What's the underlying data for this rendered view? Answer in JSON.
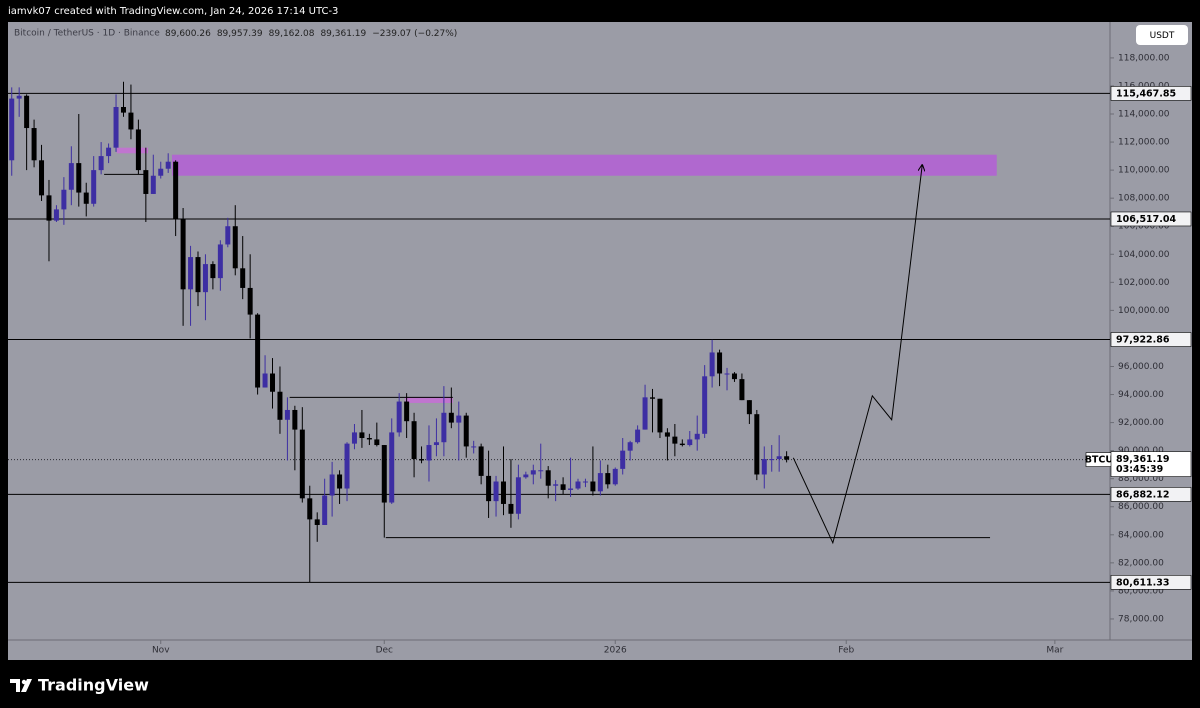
{
  "chart_data": {
    "type": "candlestick",
    "credit": "iamvk07 created with TradingView.com, Jan 24, 2026 17:14 UTC-3",
    "instrument": "Bitcoin / TetherUS · 1D · Binance",
    "header_values": [
      "89,600.26",
      "89,957.39",
      "89,162.08",
      "89,361.19"
    ],
    "change_label": "−239.07 (−0.27%)",
    "currency": "USDT",
    "symbol": "BTCUSDT",
    "last_price": {
      "value": 89361.19,
      "label": "89,361.19"
    },
    "countdown": "03:45:39",
    "brand": "TradingView",
    "up_color": "#3d2ea3",
    "down_color": "#000000",
    "background": "#9b9ca6",
    "open": [
      110700,
      115100,
      115300,
      113000,
      110700,
      108200,
      106400,
      107200,
      108600,
      110500,
      108400,
      107600,
      110000,
      111000,
      111600,
      114500,
      114100,
      112900,
      110000,
      108300,
      109600,
      110100,
      110600,
      106500,
      101500,
      103800,
      101300,
      103300,
      102300,
      104700,
      106000,
      103000,
      101600,
      99700,
      94500,
      95500,
      94200,
      92200,
      92900,
      91500,
      86600,
      85100,
      84700,
      86800,
      88300,
      87300,
      90500,
      91300,
      90900,
      90800,
      90400,
      86300,
      91300,
      93500,
      92100,
      89400,
      89300,
      90400,
      90600,
      92700,
      92000,
      92500,
      90300,
      90300,
      88200,
      86400,
      87800,
      86200,
      85500,
      88100,
      88300,
      88600,
      88600,
      87500,
      87600,
      87200,
      87300,
      87800,
      87800,
      87100,
      88400,
      87600,
      88700,
      90000,
      90600,
      91500,
      93800,
      93700,
      91300,
      91000,
      90500,
      90400,
      90800,
      91200,
      95300,
      97000,
      95500,
      95500,
      95100,
      93600,
      92600,
      88300,
      89400,
      89400,
      89600.26
    ],
    "high": [
      115900,
      115900,
      115400,
      113600,
      111800,
      109300,
      107500,
      109500,
      111700,
      114000,
      109100,
      111000,
      112000,
      111900,
      115400,
      116300,
      116100,
      113600,
      111600,
      111100,
      110600,
      111200,
      110700,
      107300,
      104600,
      104200,
      104000,
      103500,
      105000,
      106600,
      107500,
      105300,
      104000,
      99800,
      96800,
      96600,
      96000,
      93800,
      93200,
      93100,
      87500,
      85600,
      88000,
      89200,
      88600,
      90600,
      91900,
      92900,
      91200,
      92000,
      90400,
      92300,
      94100,
      94100,
      92700,
      90300,
      91800,
      92300,
      94600,
      94500,
      93500,
      92700,
      90700,
      90500,
      90000,
      88200,
      90300,
      89400,
      89000,
      88500,
      89000,
      90500,
      88900,
      87900,
      88100,
      89500,
      88000,
      88000,
      90300,
      89300,
      89000,
      88800,
      90900,
      90700,
      91800,
      94700,
      94400,
      93700,
      91600,
      91900,
      90800,
      91400,
      92500,
      96100,
      97900,
      97200,
      95900,
      95600,
      95500,
      93600,
      92900,
      90300,
      90400,
      91100,
      89957.39
    ],
    "low": [
      109600,
      113800,
      110000,
      110200,
      107800,
      103500,
      106300,
      106100,
      107500,
      107400,
      106700,
      107400,
      109700,
      110500,
      111300,
      113800,
      112200,
      109700,
      106300,
      108300,
      109400,
      109800,
      105300,
      98900,
      98900,
      100300,
      99300,
      101500,
      101400,
      104500,
      102500,
      100800,
      98000,
      94000,
      94500,
      93000,
      91200,
      89300,
      88600,
      86300,
      80600,
      83500,
      84700,
      85300,
      86200,
      86400,
      90100,
      90200,
      90400,
      90300,
      83800,
      86200,
      91000,
      90900,
      88100,
      89100,
      87800,
      89600,
      89600,
      91600,
      89300,
      89500,
      89800,
      87600,
      85200,
      85300,
      85400,
      84500,
      85100,
      88000,
      87600,
      88000,
      86600,
      86400,
      86900,
      86700,
      87200,
      87400,
      86800,
      86800,
      87300,
      87500,
      88300,
      89300,
      90500,
      91500,
      91300,
      90900,
      89300,
      89600,
      90300,
      90300,
      90000,
      90900,
      94500,
      94600,
      94300,
      94900,
      93600,
      91900,
      87900,
      87300,
      88500,
      88500,
      89162.08
    ],
    "close": [
      115100,
      115300,
      113000,
      110700,
      108200,
      106400,
      107200,
      108600,
      110500,
      108400,
      107600,
      110000,
      111000,
      111600,
      114500,
      114100,
      112900,
      110000,
      108300,
      109600,
      110100,
      110600,
      106500,
      101500,
      103800,
      101300,
      103300,
      102300,
      104700,
      106000,
      103000,
      101600,
      99700,
      94500,
      95500,
      94200,
      92200,
      92900,
      91500,
      86600,
      85100,
      84700,
      86800,
      88300,
      87300,
      90500,
      91300,
      90900,
      90800,
      90400,
      86300,
      91300,
      93500,
      92100,
      89400,
      89300,
      90400,
      90600,
      92700,
      92000,
      92500,
      90300,
      90300,
      88200,
      86400,
      87800,
      86200,
      85500,
      88100,
      88300,
      88600,
      88600,
      87500,
      87600,
      87200,
      87300,
      87800,
      87800,
      87100,
      88400,
      87600,
      88700,
      90000,
      90600,
      91500,
      93800,
      93700,
      91300,
      91000,
      90500,
      90400,
      90800,
      91200,
      95300,
      97000,
      95500,
      95500,
      95100,
      93600,
      92600,
      88300,
      89400,
      89400,
      89600.26,
      89361.19
    ],
    "xlim": [
      -0.5,
      147.4
    ],
    "xticks": [
      {
        "value": 20,
        "label": "Nov"
      },
      {
        "value": 50,
        "label": "Dec"
      },
      {
        "value": 81,
        "label": "2026"
      },
      {
        "value": 112,
        "label": "Feb"
      },
      {
        "value": 140,
        "label": "Mar"
      }
    ],
    "ylim": [
      76500,
      120560
    ],
    "yticks": [
      {
        "value": 78000,
        "label": "78,000.00"
      },
      {
        "value": 80000,
        "label": "80,000.00"
      },
      {
        "value": 82000,
        "label": "82,000.00"
      },
      {
        "value": 84000,
        "label": "84,000.00"
      },
      {
        "value": 86000,
        "label": "86,000.00"
      },
      {
        "value": 88000,
        "label": "88,000.00"
      },
      {
        "value": 90000,
        "label": "90,000.00"
      },
      {
        "value": 92000,
        "label": "92,000.00"
      },
      {
        "value": 94000,
        "label": "94,000.00"
      },
      {
        "value": 96000,
        "label": "96,000.00"
      },
      {
        "value": 98000,
        "label": "98,000.00"
      },
      {
        "value": 100000,
        "label": "100,000.00"
      },
      {
        "value": 102000,
        "label": "102,000.00"
      },
      {
        "value": 104000,
        "label": "104,000.00"
      },
      {
        "value": 106000,
        "label": "106,000.00"
      },
      {
        "value": 108000,
        "label": "108,000.00"
      },
      {
        "value": 110000,
        "label": "110,000.00"
      },
      {
        "value": 112000,
        "label": "112,000.00"
      },
      {
        "value": 114000,
        "label": "114,000.00"
      },
      {
        "value": 116000,
        "label": "116,000.00"
      },
      {
        "value": 118000,
        "label": "118,000.00"
      }
    ],
    "grid": false,
    "levels": [
      {
        "value": 115467.85,
        "label": "115,467.85"
      },
      {
        "value": 106517.04,
        "label": "106,517.04"
      },
      {
        "value": 97922.86,
        "label": "97,922.86"
      },
      {
        "value": 86882.12,
        "label": "86,882.12"
      },
      {
        "value": 80611.33,
        "label": "80,611.33"
      }
    ],
    "zones": [
      {
        "x": [
          21.5,
          132.2
        ],
        "y": [
          109600,
          111100
        ],
        "color": "#b45fd6"
      },
      {
        "x": [
          14.1,
          18.3
        ],
        "y": [
          111200,
          111600
        ],
        "color": "#c76fd6"
      },
      {
        "x": [
          52.8,
          59.2
        ],
        "y": [
          93400,
          93800
        ],
        "color": "#c76fd6"
      }
    ],
    "lines": [
      {
        "x": [
          12.4,
          17.9
        ],
        "y": [
          109700,
          109700
        ]
      },
      {
        "x": [
          37.3,
          59.2
        ],
        "y": [
          93800,
          93800
        ]
      },
      {
        "x": [
          50.2,
          131.3
        ],
        "y": [
          83800,
          83800
        ]
      }
    ],
    "projection": {
      "x": [
        104.9,
        110.2,
        115.5,
        118.1,
        122.2
      ],
      "y": [
        89490,
        83430,
        93910,
        92200,
        110370
      ]
    }
  }
}
